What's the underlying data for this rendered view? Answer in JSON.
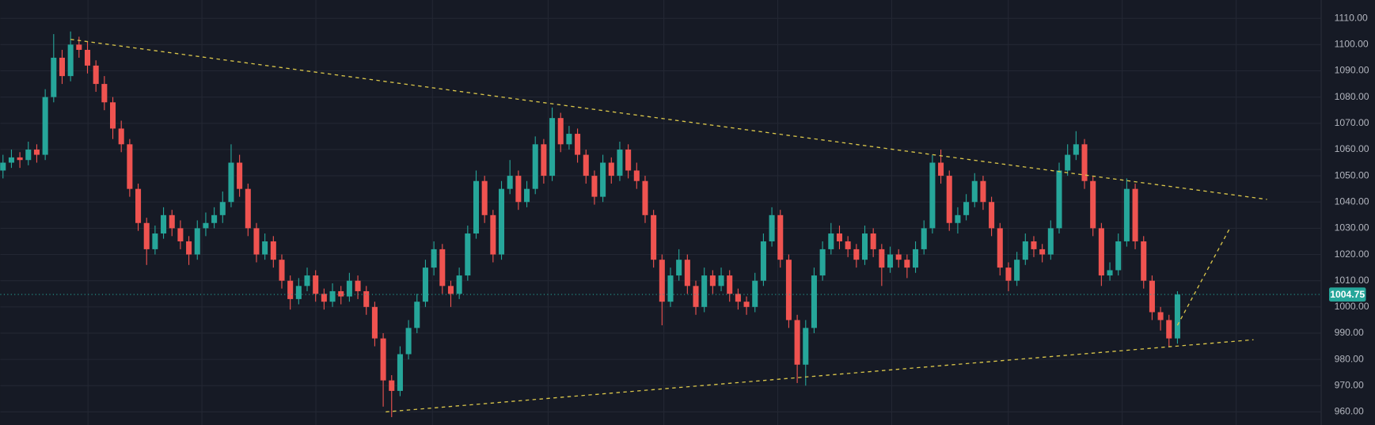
{
  "chart_data": {
    "type": "candlestick",
    "up_color": "#26a69a",
    "down_color": "#ef5350",
    "ylim": [
      955,
      1117
    ],
    "yticks": [
      {
        "value": 960,
        "label": "960.00"
      },
      {
        "value": 970,
        "label": "970.00"
      },
      {
        "value": 980,
        "label": "980.00"
      },
      {
        "value": 990,
        "label": "990.00"
      },
      {
        "value": 1000,
        "label": "1000.00"
      },
      {
        "value": 1010,
        "label": "1010.00"
      },
      {
        "value": 1020,
        "label": "1020.00"
      },
      {
        "value": 1030,
        "label": "1030.00"
      },
      {
        "value": 1040,
        "label": "1040.00"
      },
      {
        "value": 1050,
        "label": "1050.00"
      },
      {
        "value": 1060,
        "label": "1060.00"
      },
      {
        "value": 1070,
        "label": "1070.00"
      },
      {
        "value": 1080,
        "label": "1080.00"
      },
      {
        "value": 1090,
        "label": "1090.00"
      },
      {
        "value": 1100,
        "label": "1100.00"
      },
      {
        "value": 1110,
        "label": "1110.00"
      }
    ],
    "grid": true,
    "last_price": 1004.75,
    "trendline_color": "#d9c54a",
    "trendlines": [
      {
        "x": [
          8,
          149.6
        ],
        "y": [
          1102,
          1041
        ]
      },
      {
        "x": [
          45.3,
          148
        ],
        "y": [
          960,
          987.5
        ]
      },
      {
        "x": [
          139,
          145.2
        ],
        "y": [
          993,
          1030
        ]
      }
    ],
    "candles": [
      [
        1052,
        1058,
        1049,
        1055
      ],
      [
        1055,
        1060,
        1053,
        1057
      ],
      [
        1057,
        1059,
        1053,
        1056
      ],
      [
        1056,
        1063,
        1054,
        1060
      ],
      [
        1060,
        1062,
        1055,
        1058
      ],
      [
        1058,
        1083,
        1056,
        1080
      ],
      [
        1080,
        1104,
        1078,
        1095
      ],
      [
        1095,
        1098,
        1085,
        1088
      ],
      [
        1088,
        1105,
        1086,
        1100
      ],
      [
        1100,
        1103,
        1095,
        1098
      ],
      [
        1098,
        1101,
        1089,
        1092
      ],
      [
        1092,
        1094,
        1082,
        1085
      ],
      [
        1085,
        1088,
        1075,
        1078
      ],
      [
        1078,
        1080,
        1064,
        1068
      ],
      [
        1068,
        1071,
        1059,
        1062
      ],
      [
        1062,
        1064,
        1042,
        1045
      ],
      [
        1045,
        1047,
        1029,
        1032
      ],
      [
        1032,
        1034,
        1016,
        1022
      ],
      [
        1022,
        1031,
        1020,
        1028
      ],
      [
        1028,
        1038,
        1026,
        1035
      ],
      [
        1035,
        1037,
        1027,
        1030
      ],
      [
        1030,
        1033,
        1022,
        1025
      ],
      [
        1025,
        1027,
        1016,
        1020
      ],
      [
        1020,
        1033,
        1018,
        1030
      ],
      [
        1030,
        1036,
        1027,
        1032
      ],
      [
        1032,
        1038,
        1030,
        1035
      ],
      [
        1035,
        1044,
        1032,
        1040
      ],
      [
        1040,
        1062,
        1038,
        1055
      ],
      [
        1055,
        1058,
        1042,
        1045
      ],
      [
        1045,
        1047,
        1027,
        1030
      ],
      [
        1030,
        1032,
        1017,
        1020
      ],
      [
        1020,
        1028,
        1018,
        1025
      ],
      [
        1025,
        1027,
        1015,
        1018
      ],
      [
        1018,
        1020,
        1007,
        1010
      ],
      [
        1010,
        1012,
        999,
        1003
      ],
      [
        1003,
        1011,
        1001,
        1008
      ],
      [
        1008,
        1015,
        1006,
        1012
      ],
      [
        1012,
        1014,
        1002,
        1005
      ],
      [
        1005,
        1007,
        999,
        1002
      ],
      [
        1002,
        1009,
        1000,
        1006
      ],
      [
        1006,
        1008,
        1001,
        1004
      ],
      [
        1004,
        1013,
        1002,
        1010
      ],
      [
        1010,
        1012,
        1003,
        1006
      ],
      [
        1006,
        1008,
        997,
        1000
      ],
      [
        1000,
        1002,
        985,
        988
      ],
      [
        988,
        990,
        962,
        972
      ],
      [
        972,
        974,
        958,
        968
      ],
      [
        968,
        985,
        966,
        982
      ],
      [
        982,
        995,
        980,
        992
      ],
      [
        992,
        1005,
        990,
        1002
      ],
      [
        1002,
        1018,
        1000,
        1015
      ],
      [
        1015,
        1025,
        1012,
        1022
      ],
      [
        1022,
        1024,
        1005,
        1008
      ],
      [
        1008,
        1010,
        1000,
        1005
      ],
      [
        1005,
        1015,
        1003,
        1012
      ],
      [
        1012,
        1031,
        1010,
        1028
      ],
      [
        1028,
        1052,
        1026,
        1048
      ],
      [
        1048,
        1050,
        1032,
        1035
      ],
      [
        1035,
        1037,
        1017,
        1020
      ],
      [
        1020,
        1048,
        1018,
        1045
      ],
      [
        1045,
        1056,
        1043,
        1050
      ],
      [
        1050,
        1052,
        1037,
        1040
      ],
      [
        1040,
        1048,
        1038,
        1045
      ],
      [
        1045,
        1065,
        1043,
        1062
      ],
      [
        1062,
        1064,
        1047,
        1050
      ],
      [
        1050,
        1076,
        1048,
        1072
      ],
      [
        1072,
        1074,
        1059,
        1062
      ],
      [
        1062,
        1069,
        1060,
        1066
      ],
      [
        1066,
        1068,
        1055,
        1058
      ],
      [
        1058,
        1060,
        1047,
        1050
      ],
      [
        1050,
        1052,
        1039,
        1042
      ],
      [
        1042,
        1058,
        1040,
        1055
      ],
      [
        1055,
        1057,
        1047,
        1050
      ],
      [
        1050,
        1063,
        1048,
        1060
      ],
      [
        1060,
        1062,
        1049,
        1052
      ],
      [
        1052,
        1055,
        1045,
        1048
      ],
      [
        1048,
        1050,
        1032,
        1035
      ],
      [
        1035,
        1037,
        1015,
        1018
      ],
      [
        1018,
        1020,
        993,
        1002
      ],
      [
        1002,
        1015,
        1000,
        1012
      ],
      [
        1012,
        1022,
        1010,
        1018
      ],
      [
        1018,
        1020,
        1005,
        1008
      ],
      [
        1008,
        1010,
        997,
        1000
      ],
      [
        1000,
        1015,
        998,
        1012
      ],
      [
        1012,
        1014,
        1005,
        1008
      ],
      [
        1008,
        1015,
        1006,
        1012
      ],
      [
        1012,
        1014,
        1002,
        1005
      ],
      [
        1005,
        1007,
        999,
        1002
      ],
      [
        1002,
        1004,
        997,
        1000
      ],
      [
        1000,
        1013,
        998,
        1010
      ],
      [
        1010,
        1028,
        1008,
        1025
      ],
      [
        1025,
        1038,
        1023,
        1035
      ],
      [
        1035,
        1037,
        1015,
        1018
      ],
      [
        1018,
        1020,
        992,
        995
      ],
      [
        995,
        997,
        971,
        978
      ],
      [
        978,
        995,
        970,
        992
      ],
      [
        992,
        1015,
        990,
        1012
      ],
      [
        1012,
        1025,
        1010,
        1022
      ],
      [
        1022,
        1032,
        1020,
        1028
      ],
      [
        1028,
        1031,
        1022,
        1025
      ],
      [
        1025,
        1027,
        1019,
        1022
      ],
      [
        1022,
        1024,
        1015,
        1018
      ],
      [
        1018,
        1031,
        1016,
        1028
      ],
      [
        1028,
        1030,
        1019,
        1022
      ],
      [
        1022,
        1024,
        1008,
        1015
      ],
      [
        1015,
        1023,
        1013,
        1020
      ],
      [
        1020,
        1022,
        1015,
        1018
      ],
      [
        1018,
        1020,
        1011,
        1015
      ],
      [
        1015,
        1025,
        1013,
        1022
      ],
      [
        1022,
        1033,
        1020,
        1030
      ],
      [
        1030,
        1058,
        1028,
        1055
      ],
      [
        1055,
        1060,
        1047,
        1050
      ],
      [
        1050,
        1052,
        1029,
        1032
      ],
      [
        1032,
        1038,
        1028,
        1035
      ],
      [
        1035,
        1043,
        1033,
        1040
      ],
      [
        1040,
        1051,
        1038,
        1048
      ],
      [
        1048,
        1050,
        1037,
        1040
      ],
      [
        1040,
        1042,
        1027,
        1030
      ],
      [
        1030,
        1032,
        1012,
        1015
      ],
      [
        1015,
        1017,
        1006,
        1010
      ],
      [
        1010,
        1021,
        1008,
        1018
      ],
      [
        1018,
        1028,
        1016,
        1025
      ],
      [
        1025,
        1027,
        1019,
        1022
      ],
      [
        1022,
        1024,
        1017,
        1020
      ],
      [
        1020,
        1033,
        1018,
        1030
      ],
      [
        1030,
        1055,
        1028,
        1052
      ],
      [
        1052,
        1062,
        1050,
        1058
      ],
      [
        1058,
        1067,
        1056,
        1062
      ],
      [
        1062,
        1064,
        1045,
        1048
      ],
      [
        1048,
        1050,
        1027,
        1030
      ],
      [
        1030,
        1032,
        1008,
        1012
      ],
      [
        1012,
        1017,
        1010,
        1014
      ],
      [
        1014,
        1028,
        1012,
        1025
      ],
      [
        1025,
        1049,
        1023,
        1045
      ],
      [
        1045,
        1047,
        1022,
        1025
      ],
      [
        1025,
        1027,
        1007,
        1010
      ],
      [
        1010,
        1012,
        995,
        998
      ],
      [
        998,
        1000,
        991,
        995
      ],
      [
        995,
        997,
        985,
        988
      ],
      [
        988,
        1006,
        986,
        1004.75
      ]
    ]
  }
}
